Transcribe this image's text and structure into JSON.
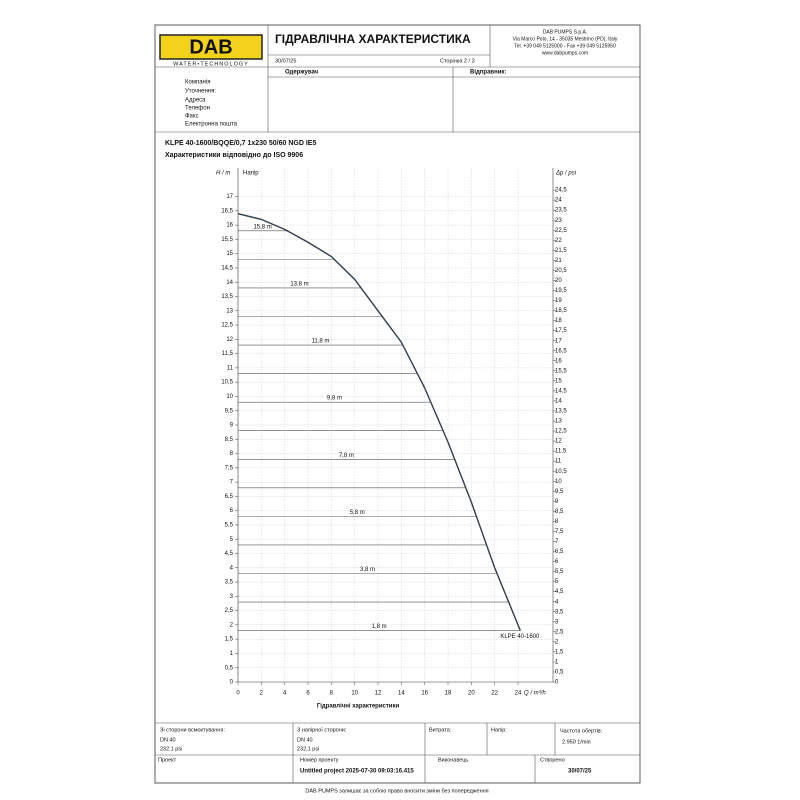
{
  "header": {
    "logo": "DAB",
    "tagline": "WATER•TECHNOLOGY",
    "title": "ГІДРАВЛІЧНА ХАРАКТЕРИСТИКА",
    "date": "30/07/25",
    "page": "Сторінка 2 / 3",
    "company": [
      "DAB PUMPS S.p.A.",
      "Via Marco Polo, 14 - 35035 Mestrino (PD), Italy",
      "Tel. +39 049 5125000 - Fax +39 049 5125950",
      "www.dabpumps.com"
    ]
  },
  "contact": {
    "recipient": "Одержувач",
    "sender": "Відправник:",
    "fields": [
      "Компанія",
      "Уточнення:",
      "Адреса",
      "Телефон",
      "Факс",
      "Електронна пошта"
    ]
  },
  "product": {
    "model": "KLPE 40-1600/BQQE/0,7 1x230 50/60 NGD IE5",
    "standard": "Характеристики відповідно до ISO 9906"
  },
  "chart_data": {
    "type": "line",
    "caption": "Гідравлічні характеристики",
    "curve_label": "Напір",
    "x_label": "Q / m³/h",
    "y_label": "H / m",
    "y2_label": "Δp / psi",
    "series": [
      {
        "name": "KLPE 40-1600",
        "color": "#2f3d4c",
        "x": [
          0,
          2,
          4,
          6,
          8,
          10,
          12,
          14,
          16,
          18,
          20,
          22,
          24.2
        ],
        "values": [
          16.4,
          16.2,
          15.85,
          15.4,
          14.9,
          14.1,
          13.0,
          11.9,
          10.3,
          8.4,
          6.3,
          4.0,
          1.8
        ]
      }
    ],
    "iso_lines": {
      "values": [
        15.8,
        14.8,
        13.8,
        12.8,
        11.8,
        10.8,
        9.8,
        8.8,
        7.8,
        6.8,
        5.8,
        4.8,
        3.8,
        2.8,
        1.8
      ],
      "value_labels": [
        "15,8 m",
        null,
        "13,8 m",
        null,
        "11,8 m",
        null,
        "9,8 m",
        null,
        "7,8 m",
        null,
        "5,8 m",
        null,
        "3,8 m",
        null,
        "1,8 m"
      ]
    },
    "xlim": [
      0,
      27
    ],
    "ylim": [
      0,
      18
    ],
    "y2lim": [
      0,
      25.6
    ],
    "grid": true,
    "xticks": [
      0,
      2,
      4,
      6,
      8,
      10,
      12,
      14,
      16,
      18,
      20,
      22,
      24
    ],
    "yticks": [
      0,
      {
        "value": 0.5,
        "label": "0,5"
      },
      1,
      {
        "value": 1.5,
        "label": "1,5"
      },
      2,
      {
        "value": 2.5,
        "label": "2,5"
      },
      3,
      {
        "value": 3.5,
        "label": "3,5"
      },
      4,
      {
        "value": 4.5,
        "label": "4,5"
      },
      5,
      {
        "value": 5.5,
        "label": "5,5"
      },
      6,
      {
        "value": 6.5,
        "label": "6,5"
      },
      7,
      {
        "value": 7.5,
        "label": "7,5"
      },
      8,
      {
        "value": 8.5,
        "label": "8,5"
      },
      9,
      {
        "value": 9.5,
        "label": "9,5"
      },
      10,
      {
        "value": 10.5,
        "label": "10,5"
      },
      11,
      {
        "value": 11.5,
        "label": "11,5"
      },
      12,
      {
        "value": 12.5,
        "label": "12,5"
      },
      13,
      {
        "value": 13.5,
        "label": "13,5"
      },
      14,
      {
        "value": 14.5,
        "label": "14,5"
      },
      15,
      {
        "value": 15.5,
        "label": "15,5"
      },
      16,
      {
        "value": 16.5,
        "label": "16,5"
      },
      17
    ],
    "y2ticks": [
      0,
      {
        "value": 0.5,
        "label": "0,5"
      },
      1,
      {
        "value": 1.5,
        "label": "1,5"
      },
      2,
      {
        "value": 2.5,
        "label": "2,5"
      },
      3,
      {
        "value": 3.5,
        "label": "3,5"
      },
      4,
      {
        "value": 4.5,
        "label": "4,5"
      },
      5,
      {
        "value": 5.5,
        "label": "5,5"
      },
      6,
      {
        "value": 6.5,
        "label": "6,5"
      },
      7,
      {
        "value": 7.5,
        "label": "7,5"
      },
      8,
      {
        "value": 8.5,
        "label": "8,5"
      },
      9,
      {
        "value": 9.5,
        "label": "9,5"
      },
      10,
      {
        "value": 10.5,
        "label": "10,5"
      },
      11,
      {
        "value": 11.5,
        "label": "11,5"
      },
      12,
      {
        "value": 12.5,
        "label": "12,5"
      },
      13,
      {
        "value": 13.5,
        "label": "13,5"
      },
      14,
      {
        "value": 14.5,
        "label": "14,5"
      },
      15,
      {
        "value": 15.5,
        "label": "15,5"
      },
      16,
      {
        "value": 16.5,
        "label": "16,5"
      },
      17,
      {
        "value": 17.5,
        "label": "17,5"
      },
      18,
      {
        "value": 18.5,
        "label": "18,5"
      },
      19,
      {
        "value": 19.5,
        "label": "19,5"
      },
      20,
      {
        "value": 20.5,
        "label": "20,5"
      },
      21,
      {
        "value": 21.5,
        "label": "21,5"
      },
      22,
      {
        "value": 22.5,
        "label": "22,5"
      },
      23,
      {
        "value": 23.5,
        "label": "23,5"
      },
      24,
      {
        "value": 24.5,
        "label": "24,5"
      }
    ]
  },
  "footer_table": {
    "suction": [
      "Зі сторони всмоктування:",
      "DN 40",
      "232,1 psi"
    ],
    "discharge": [
      "З напірної сторони:",
      "DN 40",
      "232,1 psi"
    ],
    "flow": "Витрата:",
    "head": "Напір:",
    "speed": [
      "Частота обертів:",
      "2.950 1/min"
    ],
    "project": "Проект",
    "project_number": [
      "Номер проекту",
      "Untitled project 2025-07-30 09:03:16.415"
    ],
    "author": "Виконавець",
    "created": [
      "Створено",
      "30/07/25"
    ]
  },
  "footer_note": "DAB PUMPS залишає за собою право вносити зміни без попередження"
}
